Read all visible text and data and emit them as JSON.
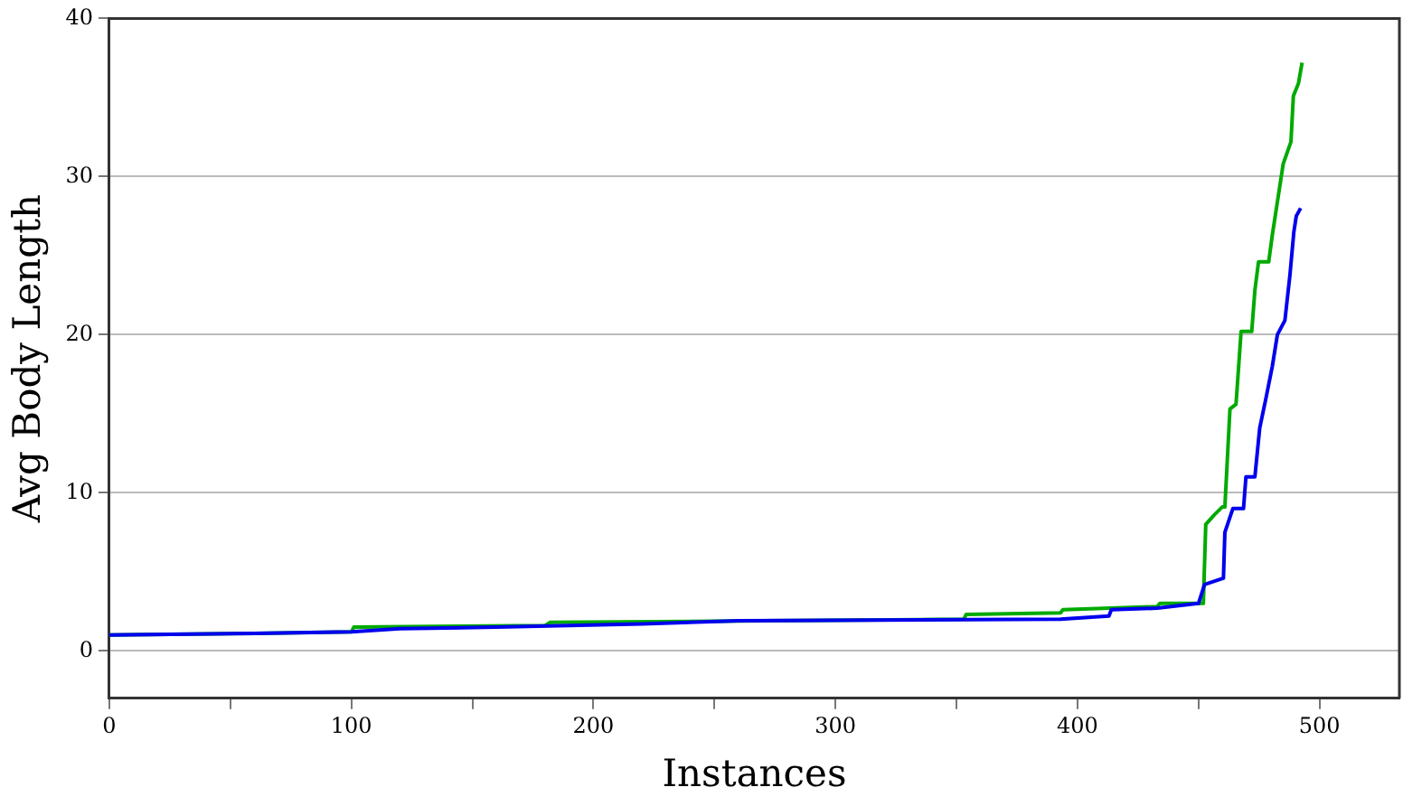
{
  "chart_data": {
    "type": "line",
    "xlabel": "Instances",
    "ylabel": "Avg Body Length",
    "xlim": [
      0,
      533
    ],
    "ylim": [
      -3,
      40
    ],
    "xticks": [
      0,
      {
        "value": 50,
        "label": null
      },
      100,
      {
        "value": 150,
        "label": null
      },
      200,
      {
        "value": 250,
        "label": null
      },
      300,
      {
        "value": 350,
        "label": null
      },
      400,
      {
        "value": 450,
        "label": null
      },
      500
    ],
    "yticks": [
      0,
      10,
      20,
      30,
      40
    ],
    "grid": "y",
    "legend": false,
    "marker": "none",
    "line_style": "solid",
    "series": [
      {
        "color": "#00aa00",
        "x": [
          0,
          60,
          100,
          101,
          180,
          182,
          270,
          353,
          354,
          393,
          394,
          433,
          434,
          452,
          453,
          456.5,
          459.8,
          460.9,
          463,
          465.5,
          467.6,
          472,
          473.3,
          474.8,
          479,
          480.5,
          485,
          488.2,
          489.2,
          491.3,
          492.8
        ],
        "values": [
          1.0,
          1.1,
          1.2,
          1.5,
          1.6,
          1.8,
          1.9,
          2.0,
          2.3,
          2.4,
          2.6,
          2.8,
          3.0,
          3.0,
          8.0,
          8.6,
          9.1,
          9.1,
          15.3,
          15.6,
          20.2,
          20.2,
          22.8,
          24.6,
          24.6,
          26.3,
          30.8,
          32.2,
          35.1,
          35.9,
          37.2
        ]
      },
      {
        "color": "#0000ee",
        "x": [
          0,
          60,
          100,
          120,
          160,
          220,
          260,
          393,
          413,
          414,
          433,
          450,
          452.5,
          460.3,
          460.9,
          464.2,
          468.6,
          469.6,
          473.3,
          475.3,
          477.9,
          480.5,
          482.6,
          485.7,
          487.8,
          489.4,
          490.4,
          492.2
        ],
        "values": [
          1.0,
          1.1,
          1.2,
          1.4,
          1.5,
          1.7,
          1.9,
          2.0,
          2.2,
          2.6,
          2.7,
          3.0,
          4.2,
          4.6,
          7.5,
          9.0,
          9.0,
          11.0,
          11.0,
          14.1,
          16.0,
          18.0,
          20.0,
          20.9,
          23.8,
          26.5,
          27.5,
          28.0
        ]
      }
    ]
  }
}
